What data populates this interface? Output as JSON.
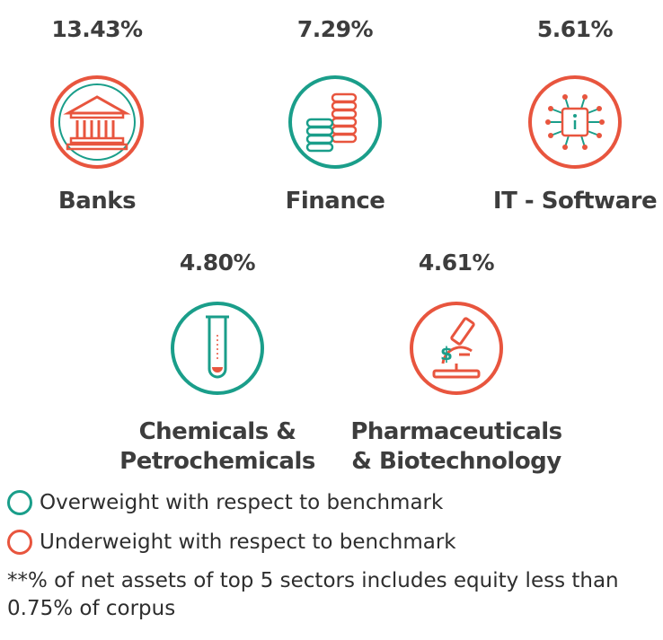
{
  "colors": {
    "overweight": "#1a9e8a",
    "underweight": "#e8553e"
  },
  "sectors": [
    {
      "name": "Banks",
      "pct": "13.43%",
      "weight": "underweight",
      "icon": "bank-building-icon"
    },
    {
      "name": "Finance",
      "pct": "7.29%",
      "weight": "overweight",
      "icon": "coin-stacks-icon"
    },
    {
      "name": "IT - Software",
      "pct": "5.61%",
      "weight": "underweight",
      "icon": "circuit-chip-icon"
    },
    {
      "name_line1": "Chemicals &",
      "name_line2": "Petrochemicals",
      "pct": "4.80%",
      "weight": "overweight",
      "icon": "test-tube-icon"
    },
    {
      "name_line1": "Pharmaceuticals",
      "name_line2": "& Biotechnology",
      "pct": "4.61%",
      "weight": "underweight",
      "icon": "microscope-icon"
    }
  ],
  "legend": {
    "overweight": "Overweight with respect to benchmark",
    "underweight": "Underweight with respect to benchmark"
  },
  "footnote": "**% of net assets of top 5 sectors includes equity less than 0.75% of corpus"
}
